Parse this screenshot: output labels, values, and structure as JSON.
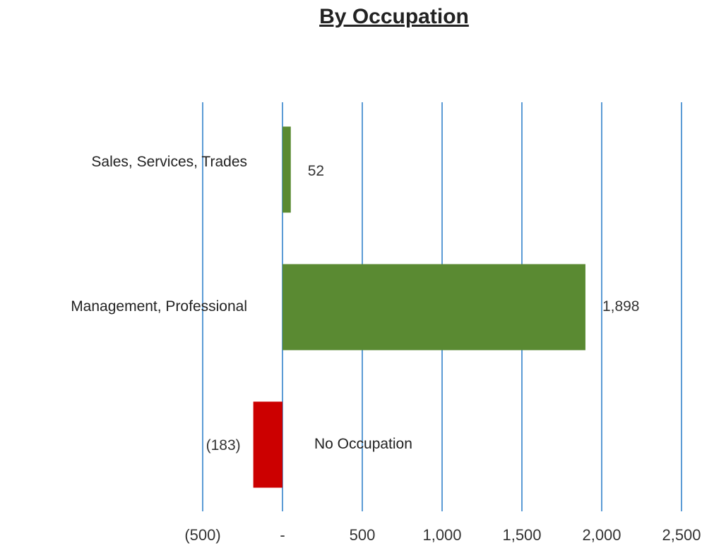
{
  "chart_data": {
    "type": "bar",
    "orientation": "horizontal",
    "title": "By Occupation",
    "categories": [
      "Sales, Services, Trades",
      "Management, Professional",
      "No Occupation"
    ],
    "values": [
      52,
      1898,
      -183
    ],
    "value_labels": [
      "52",
      "1,898",
      "(183)"
    ],
    "colors": [
      "#5a8a32",
      "#5a8a32",
      "#cc0000"
    ],
    "xlim": [
      -500,
      2500
    ],
    "xticks": [
      {
        "value": -500,
        "label": "(500)"
      },
      {
        "value": 0,
        "label": "-"
      },
      500,
      {
        "value": 1000,
        "label": "1,000"
      },
      {
        "value": 1500,
        "label": "1,500"
      },
      {
        "value": 2000,
        "label": "2,000"
      },
      {
        "value": 2500,
        "label": "2,500"
      }
    ],
    "grid": true
  }
}
